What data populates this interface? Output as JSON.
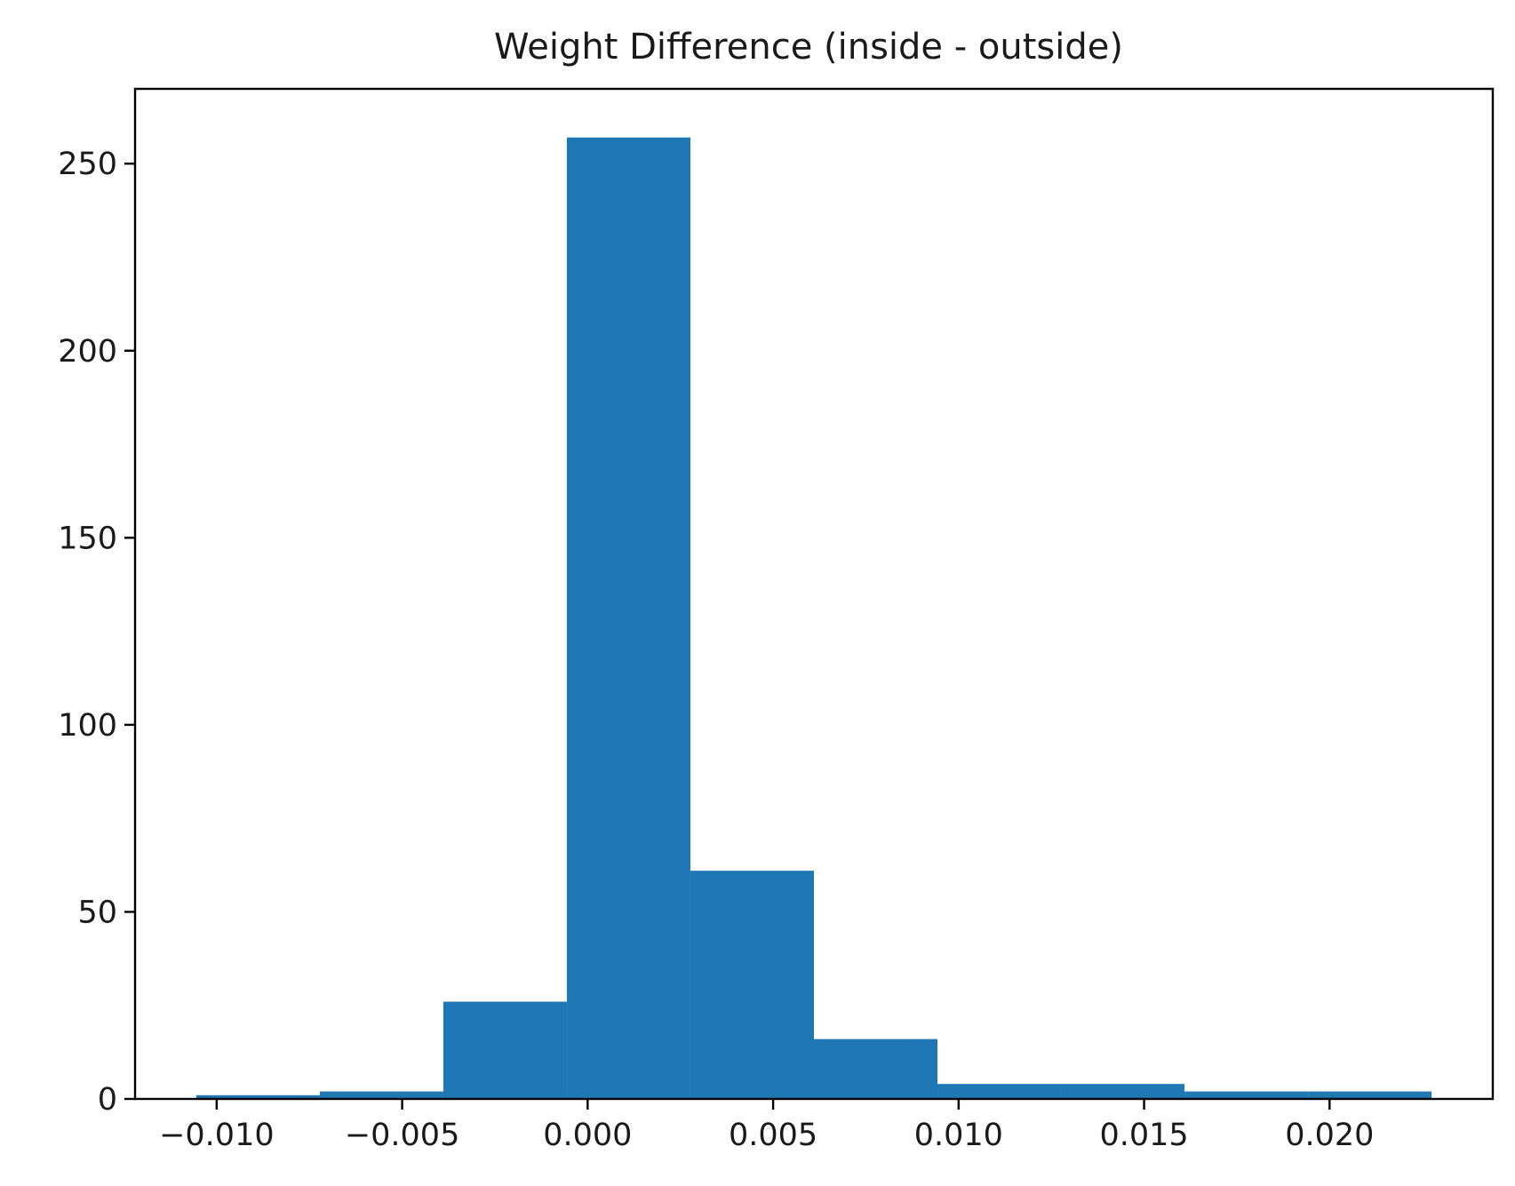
{
  "chart_data": {
    "type": "bar",
    "title": "Weight Difference (inside - outside)",
    "xlabel": "",
    "ylabel": "",
    "bin_edges": [
      -0.01055,
      -0.00722,
      -0.00389,
      -0.00056,
      0.00277,
      0.0061,
      0.00943,
      0.01276,
      0.01609,
      0.01942,
      0.02275
    ],
    "counts": [
      1,
      2,
      26,
      257,
      61,
      16,
      4,
      4,
      2,
      2
    ],
    "xlim": [
      -0.0122,
      0.0244
    ],
    "ylim": [
      0,
      270
    ],
    "x_ticks": [
      -0.01,
      -0.005,
      0.0,
      0.005,
      0.01,
      0.015,
      0.02
    ],
    "x_tick_labels": [
      "−0.010",
      "−0.005",
      "0.000",
      "0.005",
      "0.010",
      "0.015",
      "0.020"
    ],
    "y_ticks": [
      0,
      50,
      100,
      150,
      200,
      250
    ],
    "y_tick_labels": [
      "0",
      "50",
      "100",
      "150",
      "200",
      "250"
    ],
    "bar_color": "#1f77b4",
    "grid": false,
    "legend": "none"
  }
}
